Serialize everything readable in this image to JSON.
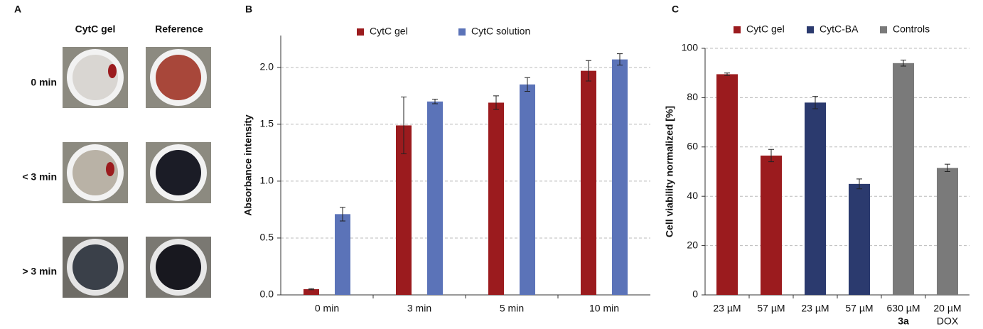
{
  "panel_a": {
    "label": "A",
    "columns": [
      "CytC gel",
      "Reference"
    ],
    "rows": [
      "0 min",
      "< 3 min",
      "> 3 min"
    ]
  },
  "chart_data": [
    {
      "type": "bar",
      "panel_label": "B",
      "y_label": "Absorbance intensity",
      "categories": [
        "0 min",
        "3 min",
        "5 min",
        "10 min"
      ],
      "series": [
        {
          "name": "CytC gel",
          "color": "#9b1b1e",
          "values": [
            0.05,
            1.49,
            1.69,
            1.97
          ],
          "errors": [
            0.005,
            0.25,
            0.06,
            0.09
          ]
        },
        {
          "name": "CytC solution",
          "color": "#5b73b8",
          "values": [
            0.71,
            1.7,
            1.85,
            2.07
          ],
          "errors": [
            0.06,
            0.02,
            0.06,
            0.05
          ]
        }
      ],
      "ylim": [
        0,
        2.28
      ],
      "yticks": [
        {
          "value": 0,
          "label": "0.0"
        },
        {
          "value": 0.5,
          "label": "0.5"
        },
        {
          "value": 1,
          "label": "1.0"
        },
        {
          "value": 1.5,
          "label": "1.5"
        },
        {
          "value": 2,
          "label": "2.0"
        }
      ],
      "grid": true
    },
    {
      "type": "bar",
      "panel_label": "C",
      "y_label": "Cell viability normalized [%]",
      "categories": [
        "23 µM",
        "57 µM",
        "23 µM",
        "57 µM",
        "630 µM",
        "20 µM"
      ],
      "category_sublabels": [
        null,
        null,
        null,
        null,
        "3a",
        "DOX"
      ],
      "series": [
        {
          "name": "CytC gel",
          "color": "#9b1b1e",
          "values": [
            89.5,
            56.5,
            null,
            null,
            null,
            null
          ],
          "errors": [
            0.5,
            2.5,
            null,
            null,
            null,
            null
          ]
        },
        {
          "name": "CytC-BA",
          "color": "#2b3a6e",
          "values": [
            null,
            null,
            78,
            45,
            null,
            null
          ],
          "errors": [
            null,
            null,
            2.5,
            2,
            null,
            null
          ]
        },
        {
          "name": "Controls",
          "color": "#7a7a7a",
          "values": [
            null,
            null,
            null,
            null,
            94,
            51.5
          ],
          "errors": [
            null,
            null,
            null,
            null,
            1.2,
            1.5
          ]
        }
      ],
      "ylim": [
        0,
        100
      ],
      "yticks": [
        0,
        20,
        40,
        60,
        80,
        100
      ],
      "grid": true
    }
  ]
}
